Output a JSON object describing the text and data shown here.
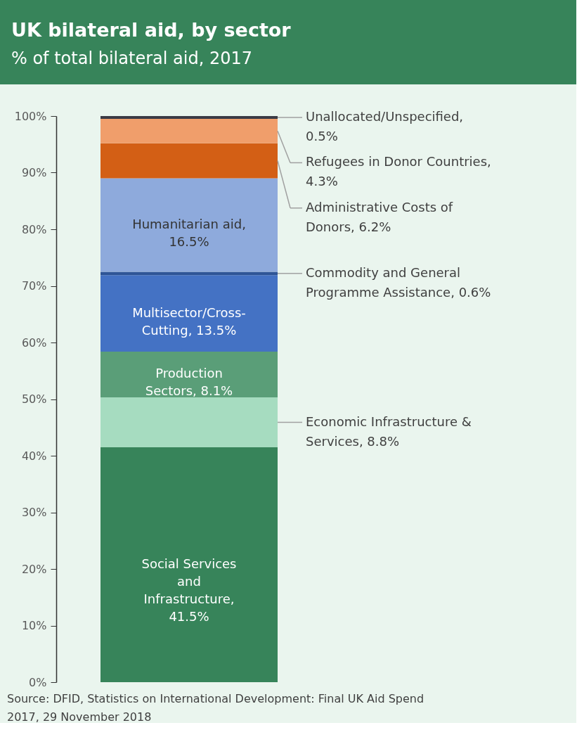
{
  "chart_data": {
    "type": "bar",
    "title": "UK bilateral aid, by sector",
    "subtitle": "% of total bilateral aid, 2017",
    "categories": [
      null
    ],
    "stacked": true,
    "grid": false,
    "series": [
      {
        "name": "Social Services and Infrastructure, 41.5%",
        "color": "#37845a",
        "values": [
          41.5
        ]
      },
      {
        "name": "Economic Infrastructure & Services, 8.8%",
        "color": "#a6dcc0",
        "values": [
          8.8
        ]
      },
      {
        "name": "Production Sectors, 8.1%",
        "color": "#5a9e78",
        "values": [
          8.1
        ]
      },
      {
        "name": "Multisector/Cross-Cutting, 13.5%",
        "color": "#4472c4",
        "values": [
          13.5
        ]
      },
      {
        "name": "Commodity and General Programme Assistance, 0.6%",
        "color": "#2f5597",
        "values": [
          0.6
        ]
      },
      {
        "name": "Humanitarian aid, 16.5%",
        "color": "#8eaadc",
        "values": [
          16.5
        ]
      },
      {
        "name": "Administrative Costs of Donors, 6.2%",
        "color": "#d35f15",
        "values": [
          6.2
        ]
      },
      {
        "name": "Refugees in Donor Countries, 4.3%",
        "color": "#f09e6b",
        "values": [
          4.3
        ]
      },
      {
        "name": "Unallocated/Unspecified, 0.5%",
        "color": "#3b3b45",
        "values": [
          0.5
        ]
      }
    ],
    "ylim": [
      0,
      100
    ],
    "yticks": [
      {
        "value": 0,
        "label": "0%"
      },
      {
        "value": 10,
        "label": "10%"
      },
      {
        "value": 20,
        "label": "20%"
      },
      {
        "value": 30,
        "label": "30%"
      },
      {
        "value": 40,
        "label": "40%"
      },
      {
        "value": 50,
        "label": "50%"
      },
      {
        "value": 60,
        "label": "60%"
      },
      {
        "value": 70,
        "label": "70%"
      },
      {
        "value": 80,
        "label": "80%"
      },
      {
        "value": 90,
        "label": "90%"
      },
      {
        "value": 100,
        "label": "100%"
      }
    ],
    "annotations": [
      "Source: DFID, Statistics on International Development: Final UK Aid Spend 2017, 29 November 2018"
    ]
  }
}
